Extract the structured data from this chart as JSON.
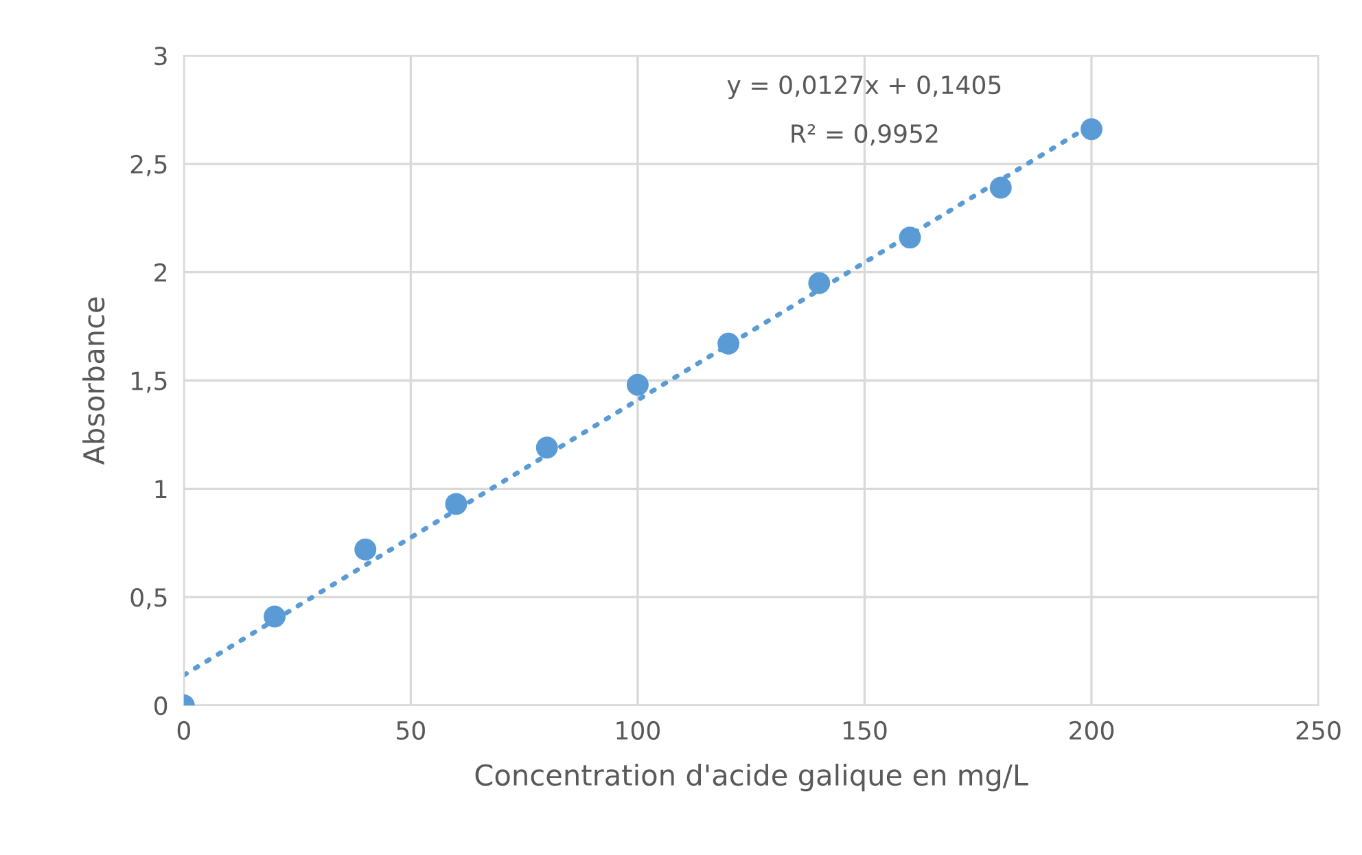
{
  "chart_data": {
    "type": "scatter",
    "xlabel": "Concentration d'acide galique en mg/L",
    "ylabel": "Absorbance",
    "x": [
      0,
      20,
      40,
      60,
      80,
      100,
      120,
      140,
      160,
      180,
      200
    ],
    "series": [
      {
        "color": "#5b9bd5",
        "marker": "circle",
        "values": [
          0,
          0.41,
          0.72,
          0.93,
          1.19,
          1.48,
          1.67,
          1.95,
          2.16,
          2.39,
          2.66
        ]
      },
      {
        "type": "line",
        "color": "#5b9bd5",
        "line_style": "dotted",
        "marker": "none",
        "x": [
          0,
          200
        ],
        "values": [
          0.14,
          2.68
        ]
      }
    ],
    "annotations": [
      "y = 0,0127x + 0,1405",
      "R² = 0,9952"
    ],
    "xlim": [
      0,
      250
    ],
    "xticks": [
      0,
      50,
      100,
      150,
      200,
      250
    ],
    "ylim": [
      0,
      3
    ],
    "yticks": [
      0,
      {
        "value": 0.5,
        "label": "0,5"
      },
      1,
      {
        "value": 1.5,
        "label": "1,5"
      },
      2,
      {
        "value": 2.5,
        "label": "2,5"
      },
      3
    ],
    "grid": true,
    "legend": false
  }
}
